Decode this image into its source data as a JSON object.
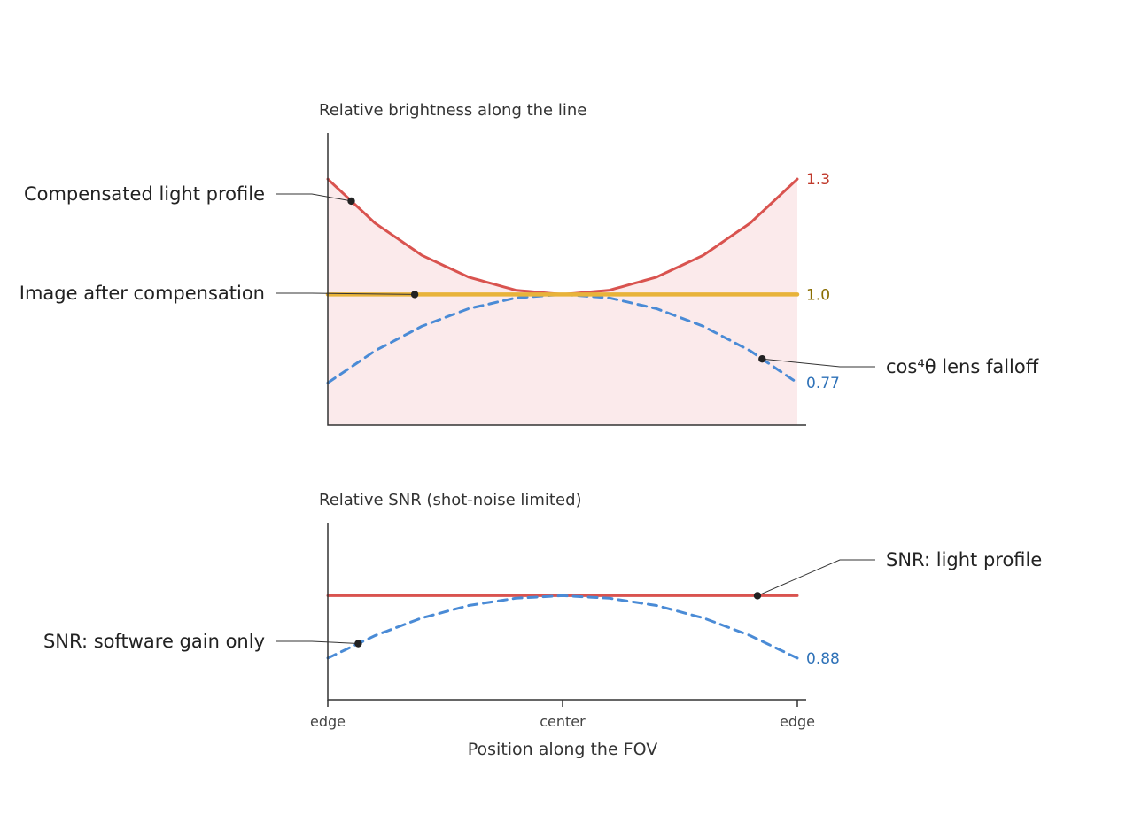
{
  "colors": {
    "profile": "#d9534f",
    "profile_fill": "#fbeaeb",
    "compensated": "#e8b33a",
    "lens": "#4a8bd6",
    "lens_label": "#2f72b8",
    "profile_label": "#c0392b",
    "compensated_label": "#8a6d00",
    "axis": "#333333",
    "dot": "#222222"
  },
  "chart_data": {
    "type": "line",
    "x_ticks": [
      "edge",
      "center",
      "edge"
    ],
    "xlabel": "Position along the FOV",
    "xlim": [
      -1,
      1
    ],
    "panels": [
      {
        "id": "brightness",
        "title": "Relative brightness along the line",
        "ylim": [
          0.66,
          1.42
        ],
        "fill_series": "profile",
        "series": [
          {
            "key": "profile",
            "name": "Compensated light profile",
            "style": "solid",
            "end_label": "1.3",
            "points": [
              [
                -1,
                1.3
              ],
              [
                -0.8,
                1.186
              ],
              [
                -0.6,
                1.102
              ],
              [
                -0.4,
                1.045
              ],
              [
                -0.2,
                1.011
              ],
              [
                0,
                1.0
              ],
              [
                0.2,
                1.011
              ],
              [
                0.4,
                1.045
              ],
              [
                0.6,
                1.102
              ],
              [
                0.8,
                1.186
              ],
              [
                1,
                1.3
              ]
            ],
            "marker_x": -0.9
          },
          {
            "key": "compensated",
            "name": "Image after compensation",
            "style": "thick",
            "end_label": "1.0",
            "points": [
              [
                -1,
                1.0
              ],
              [
                1,
                1.0
              ]
            ],
            "marker_x": -0.63
          },
          {
            "key": "lens",
            "name": "cos⁴θ lens falloff",
            "style": "dashed",
            "end_label": "0.77",
            "points": [
              [
                -1,
                0.77
              ],
              [
                -0.8,
                0.853
              ],
              [
                -0.6,
                0.917
              ],
              [
                -0.4,
                0.963
              ],
              [
                -0.2,
                0.991
              ],
              [
                0,
                1.0
              ],
              [
                0.2,
                0.991
              ],
              [
                0.4,
                0.963
              ],
              [
                0.6,
                0.917
              ],
              [
                0.8,
                0.853
              ],
              [
                1,
                0.77
              ]
            ],
            "marker_x": 0.85
          }
        ]
      },
      {
        "id": "snr",
        "title": "Relative SNR (shot-noise limited)",
        "ylim": [
          0.8,
          1.14
        ],
        "series": [
          {
            "key": "profile",
            "name": "SNR: light profile",
            "style": "solid",
            "end_label": "",
            "points": [
              [
                -1,
                1.0
              ],
              [
                1,
                1.0
              ]
            ],
            "marker_x": 0.83
          },
          {
            "key": "lens",
            "name": "SNR: software gain only",
            "style": "dashed",
            "end_label": "0.88",
            "points": [
              [
                -1,
                0.88
              ],
              [
                -0.8,
                0.923
              ],
              [
                -0.6,
                0.957
              ],
              [
                -0.4,
                0.981
              ],
              [
                -0.2,
                0.995
              ],
              [
                0,
                1.0
              ],
              [
                0.2,
                0.995
              ],
              [
                0.4,
                0.981
              ],
              [
                0.6,
                0.957
              ],
              [
                0.8,
                0.923
              ],
              [
                1,
                0.88
              ]
            ],
            "marker_x": -0.87
          }
        ]
      }
    ]
  }
}
